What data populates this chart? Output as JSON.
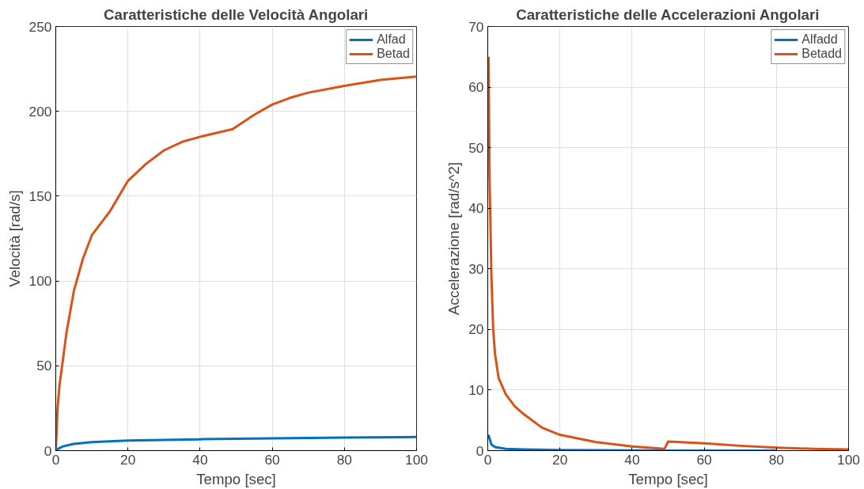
{
  "chart_data": [
    {
      "type": "line",
      "title": "Caratteristiche delle Velocità Angolari",
      "xlabel": "Tempo [sec]",
      "ylabel": "Velocità [rad/s]",
      "xlim": [
        0,
        100
      ],
      "ylim": [
        0,
        250
      ],
      "xticks": [
        0,
        20,
        40,
        60,
        80,
        100
      ],
      "yticks": [
        0,
        50,
        100,
        150,
        200,
        250
      ],
      "grid": true,
      "legend": "top right",
      "line_style": "solid",
      "series": [
        {
          "name": "Alfad",
          "color": "#0072bd",
          "x": [
            0,
            1,
            2,
            5,
            10,
            20,
            40,
            60,
            80,
            100
          ],
          "values": [
            0,
            1.5,
            2.5,
            4,
            5,
            6,
            6.7,
            7.2,
            7.7,
            8
          ]
        },
        {
          "name": "Betad",
          "color": "#d95319",
          "x": [
            0,
            0.5,
            1,
            2,
            3,
            5,
            7.5,
            10,
            15,
            20,
            25,
            30,
            35,
            40,
            45,
            49,
            55,
            60,
            65,
            70,
            80,
            90,
            100
          ],
          "values": [
            0,
            25,
            38,
            54,
            70,
            94,
            113,
            127,
            141,
            159,
            169,
            177,
            182,
            185,
            187.5,
            189.5,
            198,
            204,
            208,
            211,
            215,
            218.5,
            220.5
          ]
        }
      ]
    },
    {
      "type": "line",
      "title": "Caratteristiche delle Accelerazioni Angolari",
      "xlabel": "Tempo [sec]",
      "ylabel": "Accelerazione [rad/s^2]",
      "xlim": [
        0,
        100
      ],
      "ylim": [
        0,
        70
      ],
      "xticks": [
        0,
        20,
        40,
        60,
        80,
        100
      ],
      "yticks": [
        0,
        10,
        20,
        30,
        40,
        50,
        60,
        70
      ],
      "grid": true,
      "legend": "top right",
      "line_style": "solid",
      "series": [
        {
          "name": "Alfadd",
          "color": "#0072bd",
          "x": [
            0,
            0.3,
            1,
            2,
            5,
            10,
            20,
            50,
            80
          ],
          "values": [
            2.5,
            2.4,
            1,
            0.6,
            0.3,
            0.2,
            0.1,
            0,
            0
          ]
        },
        {
          "name": "Betadd",
          "color": "#d95319",
          "x": [
            0.2,
            0.5,
            1,
            1.5,
            2,
            3,
            5,
            7.5,
            10,
            15,
            20,
            30,
            40,
            49,
            50,
            60,
            70,
            80,
            90,
            100
          ],
          "values": [
            65,
            45,
            29,
            20,
            16,
            12,
            9.3,
            7.3,
            6,
            3.8,
            2.6,
            1.4,
            0.7,
            0.3,
            1.5,
            1.2,
            0.8,
            0.5,
            0.3,
            0.2
          ]
        }
      ]
    }
  ]
}
